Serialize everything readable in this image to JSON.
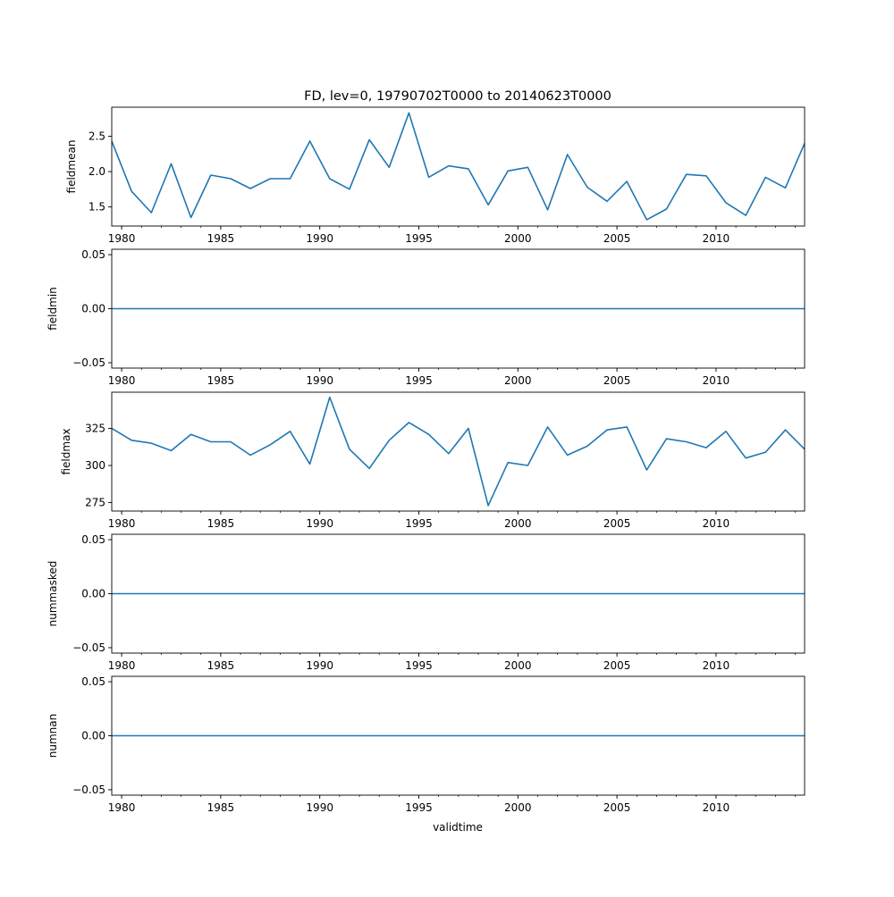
{
  "chart_data": {
    "type": "line",
    "title": "FD, lev=0, 19790702T0000 to 20140623T0000",
    "xlabel": "validtime",
    "xlim": [
      1979.5,
      2014.47
    ],
    "xticks": [
      1980,
      1985,
      1990,
      1995,
      2000,
      2005,
      2010
    ],
    "x": [
      1979.5,
      1980.5,
      1981.5,
      1982.5,
      1983.5,
      1984.5,
      1985.5,
      1986.5,
      1987.5,
      1988.5,
      1989.5,
      1990.5,
      1991.5,
      1992.5,
      1993.5,
      1994.5,
      1995.5,
      1996.5,
      1997.5,
      1998.5,
      1999.5,
      2000.5,
      2001.5,
      2002.5,
      2003.5,
      2004.5,
      2005.5,
      2006.5,
      2007.5,
      2008.5,
      2009.5,
      2010.5,
      2011.5,
      2012.5,
      2013.5,
      2014.47
    ],
    "color": "#1f77b4",
    "panels": [
      {
        "ylabel": "fieldmean",
        "ylim": [
          1.23,
          2.91
        ],
        "yticks": [
          1.5,
          2.0,
          2.5
        ],
        "ytick_labels": [
          "1.5",
          "2.0",
          "2.5"
        ],
        "values": [
          2.43,
          1.72,
          1.42,
          2.11,
          1.35,
          1.95,
          1.9,
          1.76,
          1.9,
          1.9,
          2.43,
          1.9,
          1.75,
          2.45,
          2.06,
          2.83,
          1.92,
          2.08,
          2.04,
          1.53,
          2.01,
          2.06,
          1.46,
          2.24,
          1.78,
          1.58,
          1.86,
          1.32,
          1.47,
          1.96,
          1.94,
          1.56,
          1.38,
          1.92,
          1.77,
          2.4
        ]
      },
      {
        "ylabel": "fieldmin",
        "ylim": [
          -0.055,
          0.055
        ],
        "yticks": [
          -0.05,
          0,
          0.05
        ],
        "ytick_labels": [
          "−0.05",
          "0.00",
          "0.05"
        ],
        "values": [
          0,
          0,
          0,
          0,
          0,
          0,
          0,
          0,
          0,
          0,
          0,
          0,
          0,
          0,
          0,
          0,
          0,
          0,
          0,
          0,
          0,
          0,
          0,
          0,
          0,
          0,
          0,
          0,
          0,
          0,
          0,
          0,
          0,
          0,
          0,
          0
        ]
      },
      {
        "ylabel": "fieldmax",
        "ylim": [
          269.3,
          349.4
        ],
        "yticks": [
          275,
          300,
          325
        ],
        "ytick_labels": [
          "275",
          "300",
          "325"
        ],
        "values": [
          325,
          317,
          315,
          310,
          321,
          316,
          316,
          307,
          314,
          323,
          301,
          346,
          311,
          298,
          317,
          329,
          321,
          308,
          325,
          273,
          302,
          300,
          326,
          307,
          313,
          324,
          326,
          297,
          318,
          316,
          312,
          323,
          305,
          309,
          324,
          311
        ]
      },
      {
        "ylabel": "nummasked",
        "ylim": [
          -0.055,
          0.055
        ],
        "yticks": [
          -0.05,
          0,
          0.05
        ],
        "ytick_labels": [
          "−0.05",
          "0.00",
          "0.05"
        ],
        "values": [
          0,
          0,
          0,
          0,
          0,
          0,
          0,
          0,
          0,
          0,
          0,
          0,
          0,
          0,
          0,
          0,
          0,
          0,
          0,
          0,
          0,
          0,
          0,
          0,
          0,
          0,
          0,
          0,
          0,
          0,
          0,
          0,
          0,
          0,
          0,
          0
        ]
      },
      {
        "ylabel": "numnan",
        "ylim": [
          -0.055,
          0.055
        ],
        "yticks": [
          -0.05,
          0,
          0.05
        ],
        "ytick_labels": [
          "−0.05",
          "0.00",
          "0.05"
        ],
        "values": [
          0,
          0,
          0,
          0,
          0,
          0,
          0,
          0,
          0,
          0,
          0,
          0,
          0,
          0,
          0,
          0,
          0,
          0,
          0,
          0,
          0,
          0,
          0,
          0,
          0,
          0,
          0,
          0,
          0,
          0,
          0,
          0,
          0,
          0,
          0,
          0
        ]
      }
    ]
  }
}
